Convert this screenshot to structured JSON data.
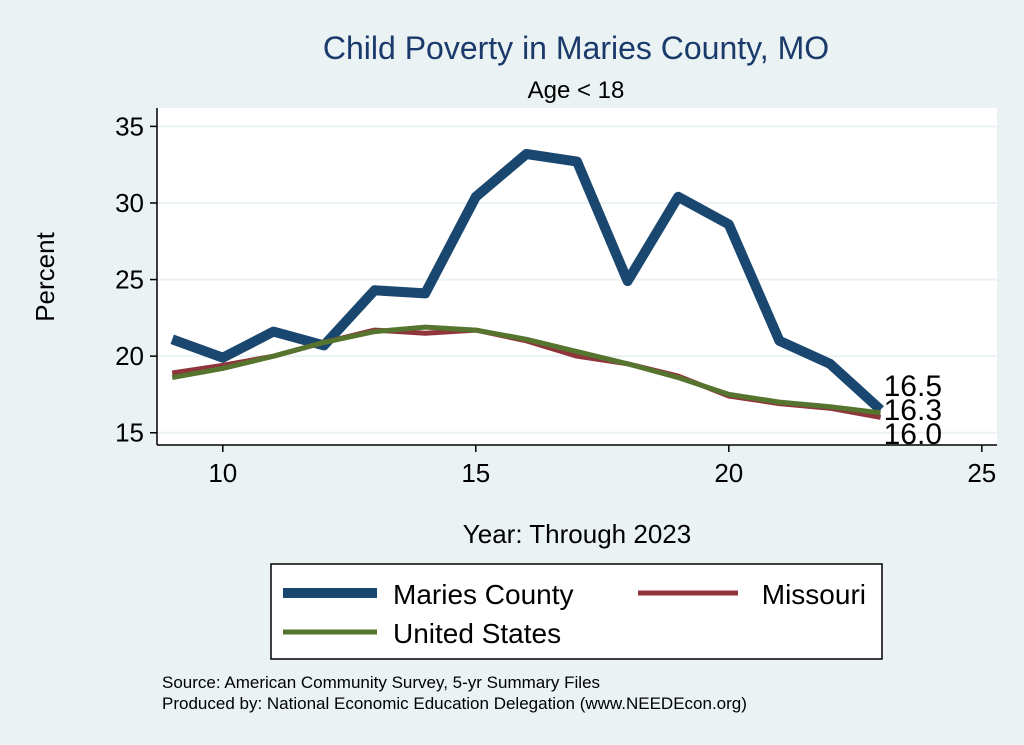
{
  "chart_data": {
    "type": "line",
    "title": "Child Poverty in Maries County, MO",
    "subtitle": "Age < 18",
    "xlabel": "Year: Through 2023",
    "ylabel": "Percent",
    "xlim": [
      8.7,
      25.3
    ],
    "ylim": [
      14.2,
      36.2
    ],
    "xticks": [
      10,
      15,
      20,
      25
    ],
    "yticks": [
      15,
      20,
      25,
      30,
      35
    ],
    "grid": true,
    "series": [
      {
        "name": "Maries County",
        "color": "#1a476f",
        "x": [
          9,
          10,
          11,
          12,
          13,
          14,
          15,
          16,
          17,
          18,
          19,
          20,
          21,
          22,
          23
        ],
        "values": [
          21.1,
          19.9,
          21.6,
          20.7,
          24.3,
          24.1,
          30.4,
          33.2,
          32.7,
          24.9,
          30.4,
          28.6,
          21.0,
          19.5,
          16.5
        ],
        "end_label": "16.5"
      },
      {
        "name": "Missouri",
        "color": "#90353b",
        "x": [
          9,
          10,
          11,
          12,
          13,
          14,
          15,
          16,
          17,
          18,
          19,
          20,
          21,
          22,
          23
        ],
        "values": [
          18.9,
          19.4,
          20.0,
          20.9,
          21.7,
          21.5,
          21.7,
          21.0,
          20.0,
          19.5,
          18.7,
          17.4,
          16.9,
          16.6,
          16.0
        ],
        "end_label": "16.0"
      },
      {
        "name": "United States",
        "color": "#55752f",
        "x": [
          9,
          10,
          11,
          12,
          13,
          14,
          15,
          16,
          17,
          18,
          19,
          20,
          21,
          22,
          23
        ],
        "values": [
          18.6,
          19.2,
          20.0,
          20.9,
          21.6,
          21.9,
          21.7,
          21.1,
          20.3,
          19.5,
          18.6,
          17.5,
          17.0,
          16.7,
          16.3
        ],
        "end_label": "16.3"
      }
    ],
    "legend": {
      "placement": "bottom",
      "entries": [
        "Maries County",
        "Missouri",
        "United States"
      ]
    }
  },
  "notes": {
    "source": "Source: American Community Survey, 5-yr Summary Files",
    "produced_by": "Produced by: National Economic Education Delegation (www.NEEDEcon.org)"
  }
}
